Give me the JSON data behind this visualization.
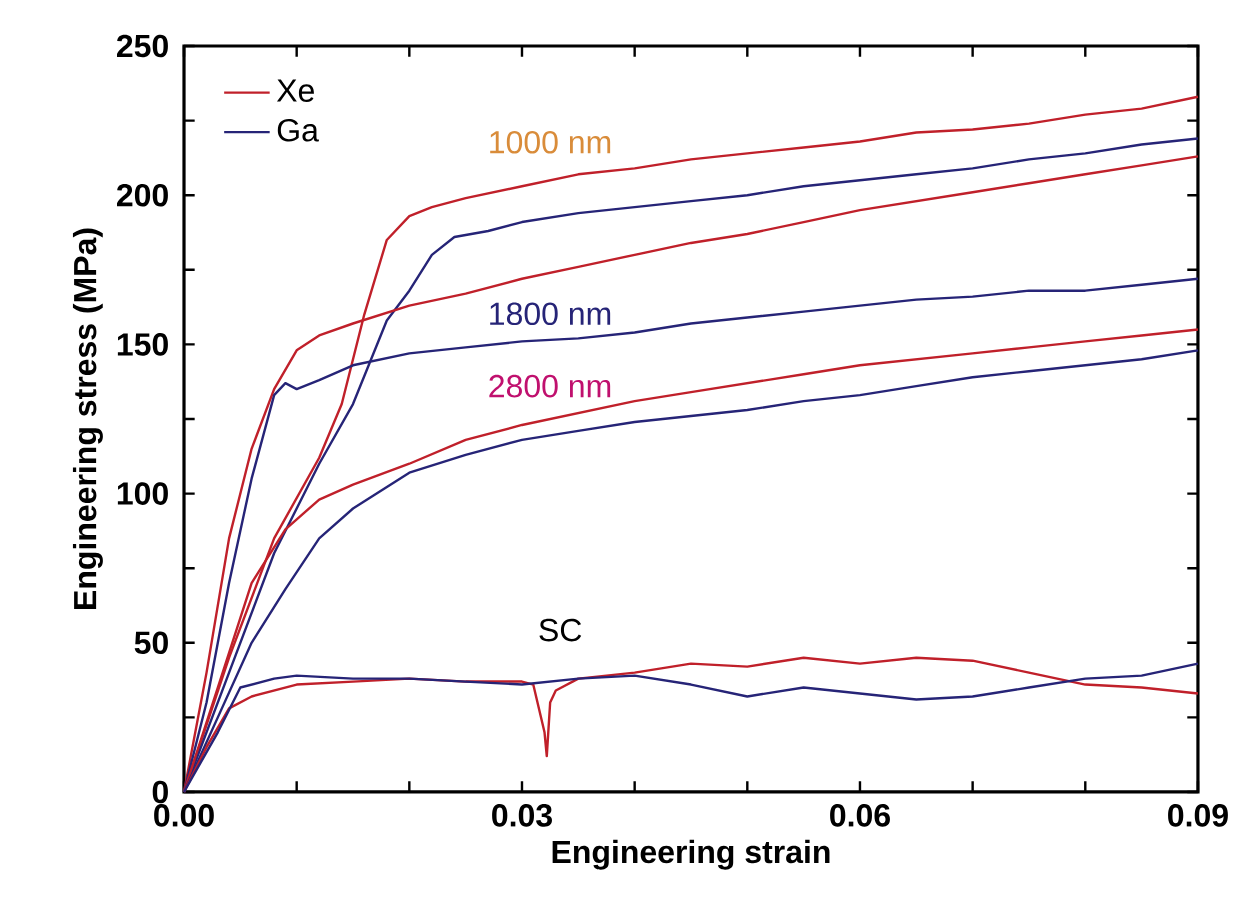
{
  "chart_data": {
    "type": "line",
    "xlabel": "Engineering strain",
    "ylabel": "Engineering stress (MPa)",
    "xlim": [
      0,
      0.09
    ],
    "ylim": [
      0,
      250
    ],
    "xticks": [
      {
        "value": 0,
        "label": "0.00"
      },
      {
        "value": 0.01,
        "label": null
      },
      {
        "value": 0.02,
        "label": null
      },
      {
        "value": 0.03,
        "label": "0.03"
      },
      {
        "value": 0.04,
        "label": null
      },
      {
        "value": 0.05,
        "label": null
      },
      {
        "value": 0.06,
        "label": "0.06"
      },
      {
        "value": 0.07,
        "label": null
      },
      {
        "value": 0.08,
        "label": null
      },
      {
        "value": 0.09,
        "label": "0.09"
      }
    ],
    "yticks": [
      0,
      {
        "value": 25,
        "label": null
      },
      50,
      {
        "value": 75,
        "label": null
      },
      100,
      {
        "value": 125,
        "label": null
      },
      150,
      {
        "value": 175,
        "label": null
      },
      200,
      {
        "value": 225,
        "label": null
      },
      250
    ],
    "legend": "top left",
    "grid": false,
    "marker": "none",
    "line_style": "solid",
    "annotations": [
      "1000 nm",
      "1800 nm",
      "2800 nm",
      "SC"
    ],
    "series": [
      {
        "name": "Xe",
        "color": "#c0202a",
        "x": [
          0,
          0.004,
          0.008,
          0.012,
          0.014,
          0.016,
          0.018,
          0.02,
          0.022,
          0.025,
          0.03,
          0.035,
          0.04,
          0.045,
          0.05,
          0.055,
          0.06,
          0.065,
          0.07,
          0.075,
          0.08,
          0.085,
          0.09
        ],
        "values": [
          0,
          45,
          85,
          112,
          130,
          160,
          185,
          193,
          196,
          199,
          203,
          207,
          209,
          212,
          214,
          216,
          218,
          221,
          222,
          224,
          227,
          229,
          233
        ]
      },
      {
        "name": "Ga",
        "color": "#262477",
        "x": [
          0,
          0.004,
          0.008,
          0.012,
          0.015,
          0.018,
          0.02,
          0.022,
          0.024,
          0.027,
          0.03,
          0.035,
          0.04,
          0.045,
          0.05,
          0.055,
          0.06,
          0.065,
          0.07,
          0.075,
          0.08,
          0.085,
          0.09
        ],
        "values": [
          0,
          40,
          80,
          110,
          130,
          158,
          168,
          180,
          186,
          188,
          191,
          194,
          196,
          198,
          200,
          203,
          205,
          207,
          209,
          212,
          214,
          217,
          219
        ]
      },
      {
        "color": "#c0202a",
        "x": [
          0,
          0.002,
          0.004,
          0.006,
          0.008,
          0.01,
          0.012,
          0.015,
          0.02,
          0.025,
          0.03,
          0.035,
          0.04,
          0.045,
          0.05,
          0.055,
          0.06,
          0.065,
          0.07,
          0.075,
          0.08,
          0.085,
          0.09
        ],
        "values": [
          0,
          40,
          85,
          115,
          135,
          148,
          153,
          157,
          163,
          167,
          172,
          176,
          180,
          184,
          187,
          191,
          195,
          198,
          201,
          204,
          207,
          210,
          213
        ]
      },
      {
        "color": "#262477",
        "x": [
          0,
          0.002,
          0.004,
          0.006,
          0.008,
          0.009,
          0.01,
          0.012,
          0.015,
          0.02,
          0.025,
          0.03,
          0.035,
          0.04,
          0.045,
          0.05,
          0.055,
          0.06,
          0.065,
          0.07,
          0.075,
          0.08,
          0.085,
          0.09
        ],
        "values": [
          0,
          30,
          70,
          105,
          133,
          137,
          135,
          138,
          143,
          147,
          149,
          151,
          152,
          154,
          157,
          159,
          161,
          163,
          165,
          166,
          168,
          168,
          170,
          172
        ]
      },
      {
        "color": "#c0202a",
        "x": [
          0,
          0.003,
          0.006,
          0.009,
          0.012,
          0.015,
          0.02,
          0.025,
          0.03,
          0.035,
          0.04,
          0.045,
          0.05,
          0.055,
          0.06,
          0.065,
          0.07,
          0.075,
          0.08,
          0.085,
          0.09
        ],
        "values": [
          0,
          35,
          70,
          88,
          98,
          103,
          110,
          118,
          123,
          127,
          131,
          134,
          137,
          140,
          143,
          145,
          147,
          149,
          151,
          153,
          155
        ]
      },
      {
        "color": "#262477",
        "x": [
          0,
          0.003,
          0.006,
          0.009,
          0.012,
          0.015,
          0.02,
          0.025,
          0.03,
          0.035,
          0.04,
          0.045,
          0.05,
          0.055,
          0.06,
          0.065,
          0.07,
          0.075,
          0.08,
          0.085,
          0.09
        ],
        "values": [
          0,
          25,
          50,
          68,
          85,
          95,
          107,
          113,
          118,
          121,
          124,
          126,
          128,
          131,
          133,
          136,
          139,
          141,
          143,
          145,
          148
        ]
      },
      {
        "color": "#c0202a",
        "x": [
          0,
          0.002,
          0.004,
          0.006,
          0.01,
          0.015,
          0.02,
          0.025,
          0.03,
          0.031,
          0.032,
          0.0322,
          0.0325,
          0.033,
          0.035,
          0.04,
          0.045,
          0.05,
          0.055,
          0.06,
          0.065,
          0.07,
          0.075,
          0.08,
          0.085,
          0.09
        ],
        "values": [
          0,
          15,
          28,
          32,
          36,
          37,
          38,
          37,
          37,
          36,
          20,
          12,
          30,
          34,
          38,
          40,
          43,
          42,
          45,
          43,
          45,
          44,
          40,
          36,
          35,
          33
        ]
      },
      {
        "color": "#262477",
        "x": [
          0,
          0.003,
          0.005,
          0.008,
          0.01,
          0.015,
          0.02,
          0.025,
          0.03,
          0.035,
          0.04,
          0.045,
          0.05,
          0.055,
          0.06,
          0.065,
          0.07,
          0.075,
          0.08,
          0.085,
          0.09
        ],
        "values": [
          0,
          20,
          35,
          38,
          39,
          38,
          38,
          37,
          36,
          38,
          39,
          36,
          32,
          35,
          33,
          31,
          32,
          35,
          38,
          39,
          43
        ]
      }
    ]
  }
}
